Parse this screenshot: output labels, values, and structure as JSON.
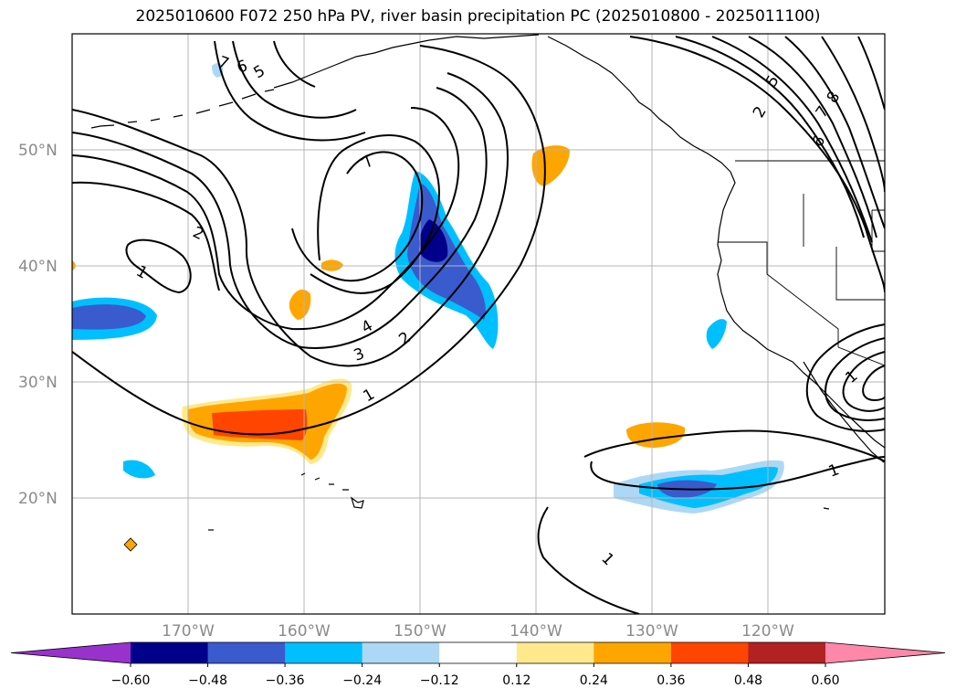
{
  "title": "2025010600 F072 250 hPa PV, river basin precipitation PC (2025010800 - 2025011100)",
  "map": {
    "projection": "PlateCarree",
    "lon_range": [
      -180,
      -110
    ],
    "lat_range": [
      10,
      60
    ],
    "lat_labels": [
      "50°N",
      "40°N",
      "30°N",
      "20°N"
    ],
    "lon_labels": [
      "170°W",
      "160°W",
      "150°W",
      "140°W",
      "130°W",
      "120°W"
    ],
    "grid": true,
    "pv_contour_labels": [
      "1",
      "2",
      "7",
      "6",
      "5",
      "4",
      "3",
      "2",
      "1",
      "7",
      "5",
      "2",
      "7",
      "8",
      "6",
      "1",
      "1",
      "1"
    ]
  },
  "colorbar": {
    "ticks": [
      "−0.60",
      "−0.48",
      "−0.36",
      "−0.24",
      "−0.12",
      "0.12",
      "0.24",
      "0.36",
      "0.48",
      "0.60"
    ],
    "colors": [
      "#9932cc",
      "#00008b",
      "#3a5bcd",
      "#00bfff",
      "#add8f5",
      "#ffffff",
      "#ffe98c",
      "#ffa500",
      "#ff4500",
      "#b22222",
      "#ff88aa"
    ],
    "extend": "both"
  }
}
